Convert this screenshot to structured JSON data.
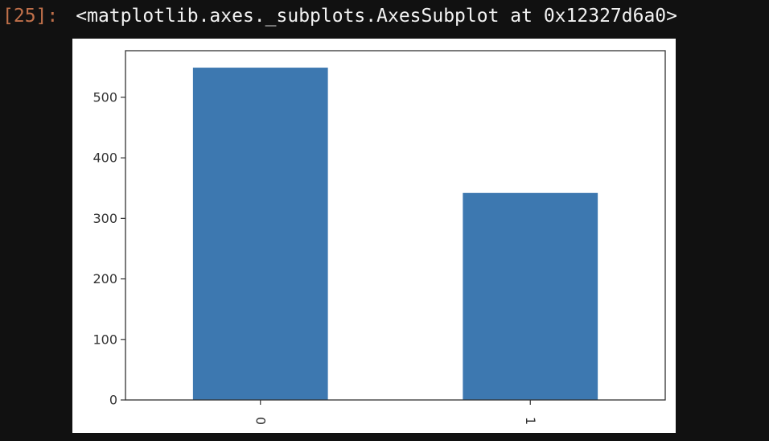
{
  "cell": {
    "prompt": "[25]:",
    "output_repr": "<matplotlib.axes._subplots.AxesSubplot at 0x12327d6a0>"
  },
  "colors": {
    "background": "#111111",
    "prompt": "#c0704a",
    "bar": "#3d78b0"
  },
  "chart_data": {
    "type": "bar",
    "categories": [
      "0",
      "1"
    ],
    "values": [
      549,
      342
    ],
    "title": "",
    "xlabel": "",
    "ylabel": "",
    "ylim": [
      0,
      577
    ],
    "yticks": [
      0,
      100,
      200,
      300,
      400,
      500
    ],
    "xtick_rotation": 90,
    "grid": false,
    "legend": "none"
  }
}
